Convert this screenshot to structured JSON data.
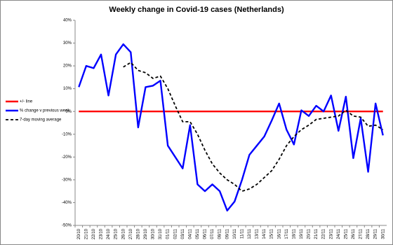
{
  "chart_data": {
    "type": "line",
    "title": "Weekly change in Covid-19 cases (Netherlands)",
    "categories": [
      "20/10",
      "21/10",
      "22/10",
      "23/10",
      "24/10",
      "25/10",
      "26/10",
      "27/10",
      "28/10",
      "29/10",
      "30/10",
      "31/10",
      "01/11",
      "02/11",
      "03/11",
      "04/11",
      "05/11",
      "06/11",
      "07/11",
      "08/11",
      "09/11",
      "10/11",
      "11/11",
      "12/11",
      "13/11",
      "14/11",
      "15/11",
      "16/11",
      "17/11",
      "18/11",
      "19/11",
      "20/11",
      "21/11",
      "22/11",
      "23/11",
      "24/11",
      "25/11",
      "26/11",
      "27/11",
      "28/11",
      "29/11",
      "30/11"
    ],
    "series": [
      {
        "name": "+/- line",
        "color": "#ff0000",
        "dash": false,
        "values": [
          0,
          0,
          0,
          0,
          0,
          0,
          0,
          0,
          0,
          0,
          0,
          0,
          0,
          0,
          0,
          0,
          0,
          0,
          0,
          0,
          0,
          0,
          0,
          0,
          0,
          0,
          0,
          0,
          0,
          0,
          0,
          0,
          0,
          0,
          0,
          0,
          0,
          0,
          0,
          0,
          0,
          0
        ]
      },
      {
        "name": "% change v previous week",
        "color": "#0000ff",
        "dash": false,
        "values": [
          10.7,
          20,
          19,
          25,
          7,
          25,
          29.5,
          26,
          -7,
          10.7,
          11.3,
          13.5,
          -15,
          -20,
          -25,
          -6,
          -32,
          -35,
          -32,
          -35,
          -43.5,
          -39.5,
          -30,
          -19,
          -15,
          -11,
          -4,
          3.5,
          -8,
          -14.5,
          0.5,
          -2,
          2.5,
          0,
          7,
          -8.5,
          6.5,
          -20.5,
          -3,
          -26.5,
          3.5,
          -10.5
        ]
      },
      {
        "name": "7-day moving average",
        "color": "#000000",
        "dash": true,
        "values": [
          null,
          null,
          null,
          null,
          null,
          null,
          19.5,
          21.5,
          18,
          17,
          14.5,
          15.5,
          10,
          2.5,
          -4.5,
          -4.5,
          -10,
          -17,
          -23,
          -27,
          -30,
          -32,
          -35,
          -34,
          -32,
          -29,
          -26,
          -21,
          -15,
          -11,
          -8,
          -6,
          -3.5,
          -3,
          -2.5,
          -2,
          0.5,
          -2,
          -2.5,
          -6.5,
          -6,
          -8
        ]
      }
    ],
    "ylim": [
      -50,
      40
    ],
    "yticks": [
      {
        "value": -50,
        "label": "-50%"
      },
      {
        "value": -40,
        "label": "-40%"
      },
      {
        "value": -30,
        "label": "-30%"
      },
      {
        "value": -20,
        "label": "-20%"
      },
      {
        "value": -10,
        "label": "-10%"
      },
      {
        "value": 0,
        "label": "0%"
      },
      {
        "value": 10,
        "label": "10%"
      },
      {
        "value": 20,
        "label": "20%"
      },
      {
        "value": 30,
        "label": "30%"
      },
      {
        "value": 40,
        "label": "40%"
      }
    ],
    "grid": false,
    "legend": "left"
  }
}
